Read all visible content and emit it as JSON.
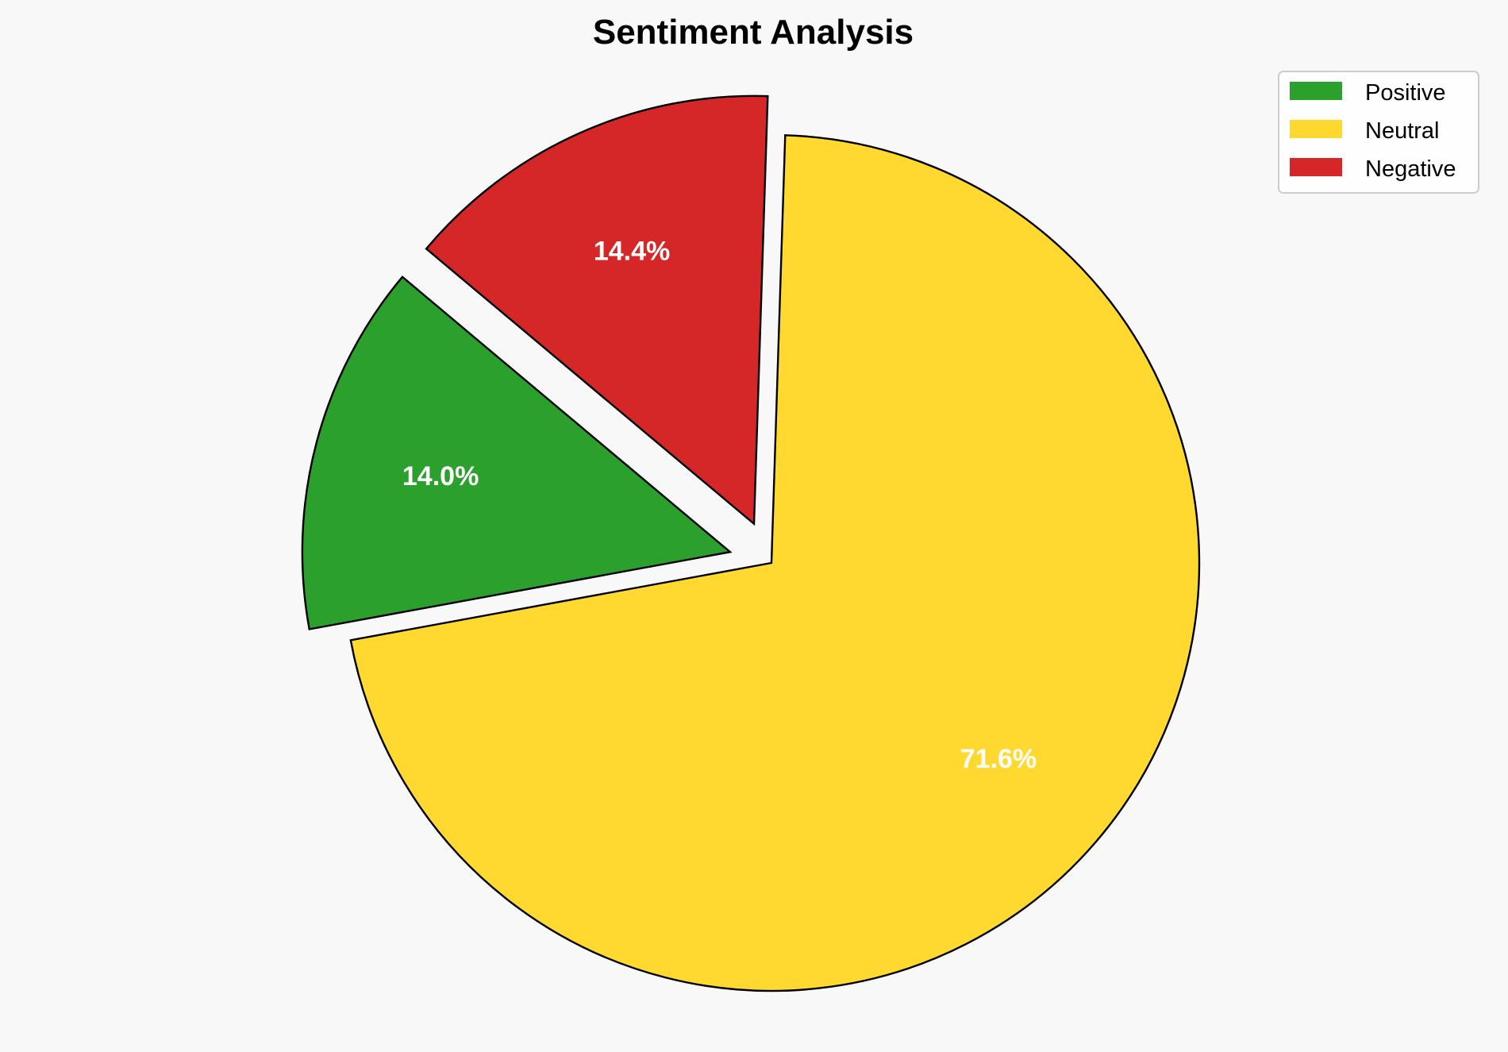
{
  "chart_data": {
    "type": "pie",
    "title": "Sentiment Analysis",
    "categories": [
      "Positive",
      "Neutral",
      "Negative"
    ],
    "values": [
      14.0,
      71.6,
      14.4
    ],
    "labels": [
      "14.0%",
      "71.6%",
      "14.4%"
    ],
    "colors": [
      "#2ca02c",
      "#ffd92f",
      "#d62728"
    ],
    "explode": [
      0.1,
      0,
      0.1
    ],
    "start_angle": 140,
    "direction": "counterclockwise",
    "edge_color": "#000000",
    "legend": {
      "placement": "top-right",
      "entries": [
        "Positive",
        "Neutral",
        "Negative"
      ]
    }
  }
}
